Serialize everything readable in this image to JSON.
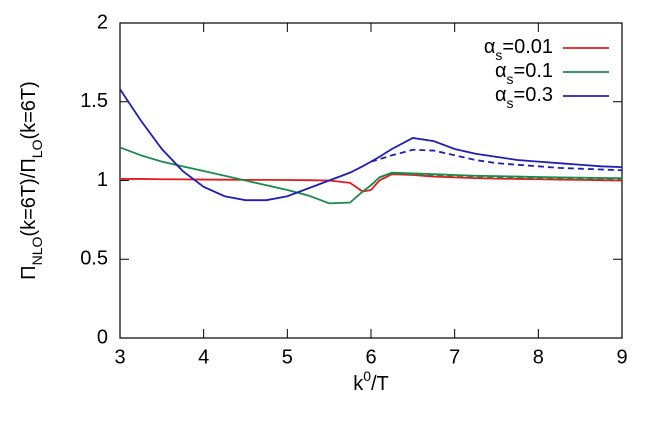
{
  "chart_data": {
    "type": "line",
    "xlabel": {
      "parts": [
        {
          "text": "k"
        },
        {
          "text": "0",
          "shift": "super"
        },
        {
          "text": "/T"
        }
      ]
    },
    "ylabel": {
      "parts": [
        {
          "text": "Π"
        },
        {
          "text": "NLO",
          "shift": "sub"
        },
        {
          "text": "(k=6T)/Π"
        },
        {
          "text": "LO",
          "shift": "sub"
        },
        {
          "text": "(k=6T)"
        }
      ]
    },
    "x": [
      3,
      3.25,
      3.5,
      3.75,
      4,
      4.25,
      4.5,
      4.75,
      5,
      5.25,
      5.5,
      5.75,
      5.9,
      6,
      6.1,
      6.25,
      6.5,
      6.75,
      7,
      7.25,
      7.5,
      7.75,
      8,
      8.25,
      8.5,
      8.75,
      9
    ],
    "series": [
      {
        "name": {
          "parts": [
            {
              "text": "α"
            },
            {
              "text": "s",
              "shift": "sub"
            },
            {
              "text": "=0.01"
            }
          ]
        },
        "color": "#e41a1c",
        "style": "solid",
        "values": [
          1.01,
          1.01,
          1.008,
          1.007,
          1.006,
          1.005,
          1.004,
          1.004,
          1.003,
          1.002,
          1.0,
          0.985,
          0.93,
          0.94,
          1.0,
          1.04,
          1.035,
          1.025,
          1.02,
          1.015,
          1.012,
          1.01,
          1.008,
          1.006,
          1.004,
          1.002,
          1.0
        ]
      },
      {
        "name": {
          "parts": [
            {
              "text": "α"
            },
            {
              "text": "s",
              "shift": "sub"
            },
            {
              "text": "=0.1"
            }
          ]
        },
        "color": "#1a8a4a",
        "style": "solid",
        "values": [
          1.21,
          1.16,
          1.12,
          1.09,
          1.06,
          1.03,
          1.0,
          0.97,
          0.94,
          0.905,
          0.855,
          0.86,
          0.93,
          0.97,
          1.02,
          1.05,
          1.045,
          1.04,
          1.035,
          1.03,
          1.028,
          1.025,
          1.022,
          1.02,
          1.018,
          1.016,
          1.015
        ]
      },
      {
        "name": {
          "parts": [
            {
              "text": "α"
            },
            {
              "text": "s",
              "shift": "sub"
            },
            {
              "text": "=0.3"
            }
          ]
        },
        "color": "#1f1fb4",
        "style": "solid",
        "values": [
          1.58,
          1.38,
          1.2,
          1.06,
          0.96,
          0.9,
          0.875,
          0.875,
          0.9,
          0.95,
          1.0,
          1.05,
          1.09,
          1.12,
          1.15,
          1.2,
          1.27,
          1.25,
          1.2,
          1.17,
          1.15,
          1.13,
          1.12,
          1.11,
          1.1,
          1.09,
          1.085
        ]
      },
      {
        "color": "#1a8a4a",
        "style": "dashed",
        "values": [
          null,
          null,
          null,
          null,
          null,
          null,
          null,
          null,
          null,
          null,
          null,
          null,
          null,
          0.97,
          1.02,
          1.045,
          1.04,
          1.035,
          1.03,
          1.026,
          1.022,
          1.019,
          1.016,
          1.014,
          1.012,
          1.011,
          1.01
        ]
      },
      {
        "color": "#1f1fb4",
        "style": "dashed",
        "values": [
          null,
          null,
          null,
          null,
          null,
          null,
          null,
          null,
          null,
          null,
          null,
          null,
          null,
          1.12,
          1.135,
          1.16,
          1.195,
          1.19,
          1.16,
          1.13,
          1.11,
          1.1,
          1.09,
          1.08,
          1.075,
          1.07,
          1.065
        ]
      }
    ],
    "xlim": [
      3,
      9
    ],
    "xticks": [
      3,
      4,
      5,
      6,
      7,
      8,
      9
    ],
    "ylim": [
      0,
      2
    ],
    "yticks": [
      0,
      0.5,
      1,
      1.5,
      2
    ],
    "legend": "upper right",
    "grid": false
  }
}
